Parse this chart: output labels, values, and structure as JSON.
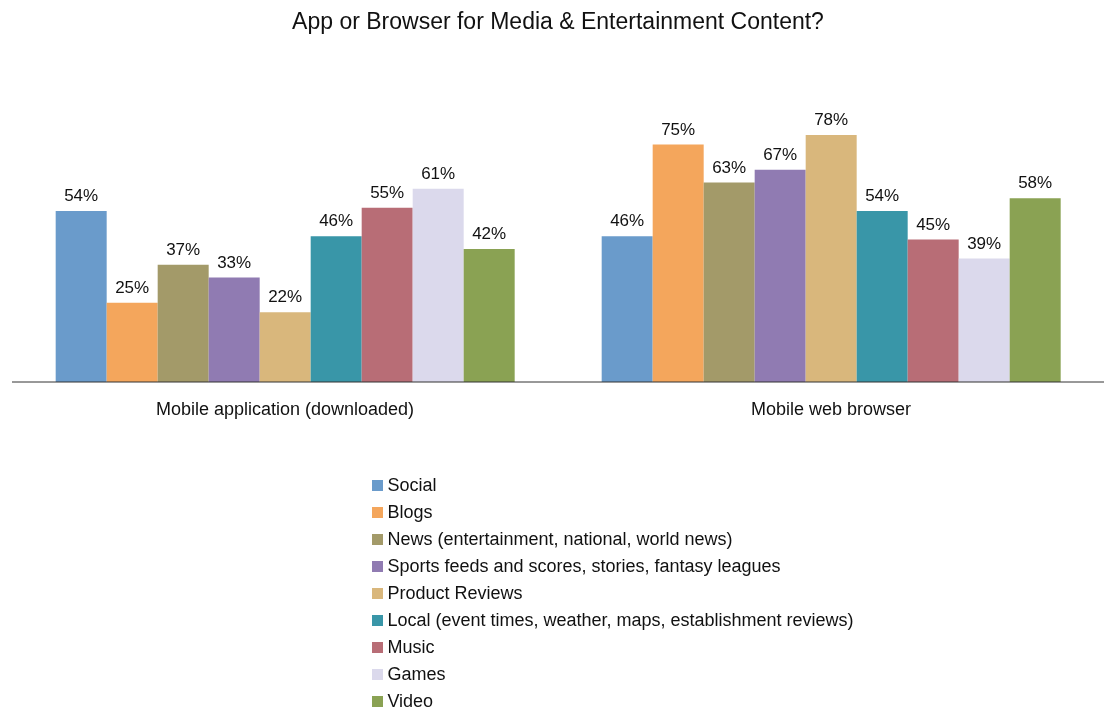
{
  "chart_data": {
    "type": "bar",
    "title": "App or Browser for Media & Entertainment Content?",
    "categories": [
      "Mobile application (downloaded)",
      "Mobile web browser"
    ],
    "legend": "bottom",
    "series": [
      {
        "name": "Social",
        "color": "#6a9bcb",
        "values": [
          54,
          46
        ],
        "value_labels": [
          "54%",
          "46%"
        ]
      },
      {
        "name": "Blogs",
        "color": "#f4a65c",
        "values": [
          25,
          75
        ],
        "value_labels": [
          "25%",
          "75%"
        ]
      },
      {
        "name": "News (entertainment, national, world news)",
        "color": "#a39a69",
        "values": [
          37,
          63
        ],
        "value_labels": [
          "37%",
          "63%"
        ]
      },
      {
        "name": "Sports feeds and scores, stories, fantasy leagues",
        "color": "#907bb2",
        "values": [
          33,
          67
        ],
        "value_labels": [
          "33%",
          "67%"
        ]
      },
      {
        "name": "Product Reviews",
        "color": "#d9b77c",
        "values": [
          22,
          78
        ],
        "value_labels": [
          "22%",
          "78%"
        ]
      },
      {
        "name": "Local (event times, weather, maps, establishment reviews)",
        "color": "#3996a8",
        "values": [
          46,
          54
        ],
        "value_labels": [
          "46%",
          "54%"
        ]
      },
      {
        "name": "Music",
        "color": "#b86d76",
        "values": [
          55,
          45
        ],
        "value_labels": [
          "55%",
          "45%"
        ]
      },
      {
        "name": "Games",
        "color": "#dbd9ec",
        "values": [
          61,
          39
        ],
        "value_labels": [
          "61%",
          "39%"
        ]
      },
      {
        "name": "Video",
        "color": "#8aa253",
        "values": [
          42,
          58
        ],
        "value_labels": [
          "42%",
          "58%"
        ]
      }
    ]
  }
}
